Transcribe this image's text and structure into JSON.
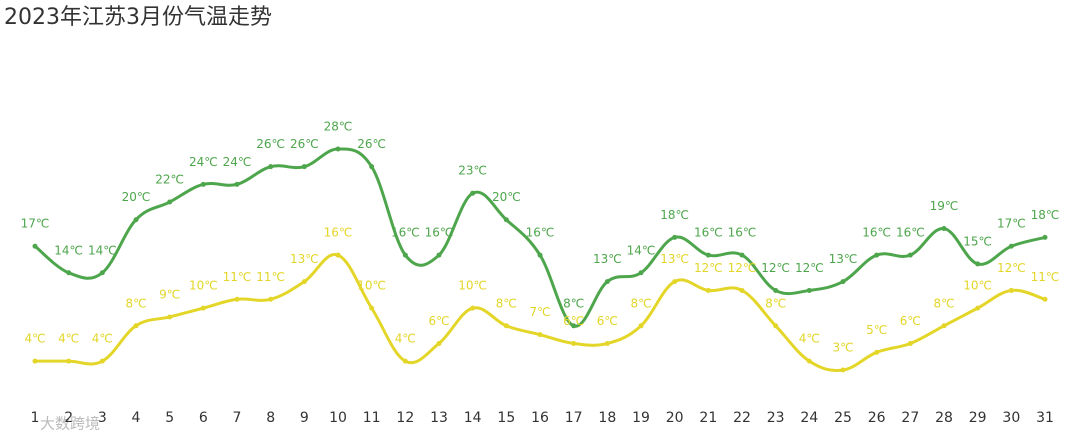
{
  "chart_data": {
    "type": "line",
    "title": "2023年江苏3月份气温走势",
    "watermark": "大数跨境",
    "categories": [
      "1",
      "2",
      "3",
      "4",
      "5",
      "6",
      "7",
      "8",
      "9",
      "10",
      "11",
      "12",
      "13",
      "14",
      "15",
      "16",
      "17",
      "18",
      "19",
      "20",
      "21",
      "22",
      "23",
      "24",
      "25",
      "26",
      "27",
      "28",
      "29",
      "30",
      "31"
    ],
    "series": [
      {
        "color": "#4ea64c",
        "values": [
          17,
          14,
          14,
          20,
          22,
          24,
          24,
          26,
          26,
          28,
          26,
          16,
          16,
          23,
          20,
          16,
          8,
          13,
          14,
          18,
          16,
          16,
          12,
          12,
          13,
          16,
          16,
          19,
          15,
          17,
          18
        ],
        "value_labels": [
          "17℃",
          "14℃",
          "14℃",
          "20℃",
          "22℃",
          "24℃",
          "24℃",
          "26℃",
          "26℃",
          "28℃",
          "26℃",
          "16℃",
          "16℃",
          "23℃",
          "20℃",
          "16℃",
          "8℃",
          "13℃",
          "14℃",
          "18℃",
          "16℃",
          "16℃",
          "12℃",
          "12℃",
          "13℃",
          "16℃",
          "16℃",
          "19℃",
          "15℃",
          "17℃",
          "18℃"
        ]
      },
      {
        "color": "#e3d629",
        "values": [
          4,
          4,
          4,
          8,
          9,
          10,
          11,
          11,
          13,
          16,
          10,
          4,
          6,
          10,
          8,
          7,
          6,
          6,
          8,
          13,
          12,
          12,
          8,
          4,
          3,
          5,
          6,
          8,
          10,
          12,
          11
        ],
        "value_labels": [
          "4℃",
          "4℃",
          "4℃",
          "8℃",
          "9℃",
          "10℃",
          "11℃",
          "11℃",
          "13℃",
          "16℃",
          "10℃",
          "4℃",
          "6℃",
          "10℃",
          "8℃",
          "7℃",
          "6℃",
          "6℃",
          "8℃",
          "13℃",
          "12℃",
          "12℃",
          "8℃",
          "4℃",
          "3℃",
          "5℃",
          "6℃",
          "8℃",
          "10℃",
          "12℃",
          "11℃"
        ]
      }
    ]
  }
}
